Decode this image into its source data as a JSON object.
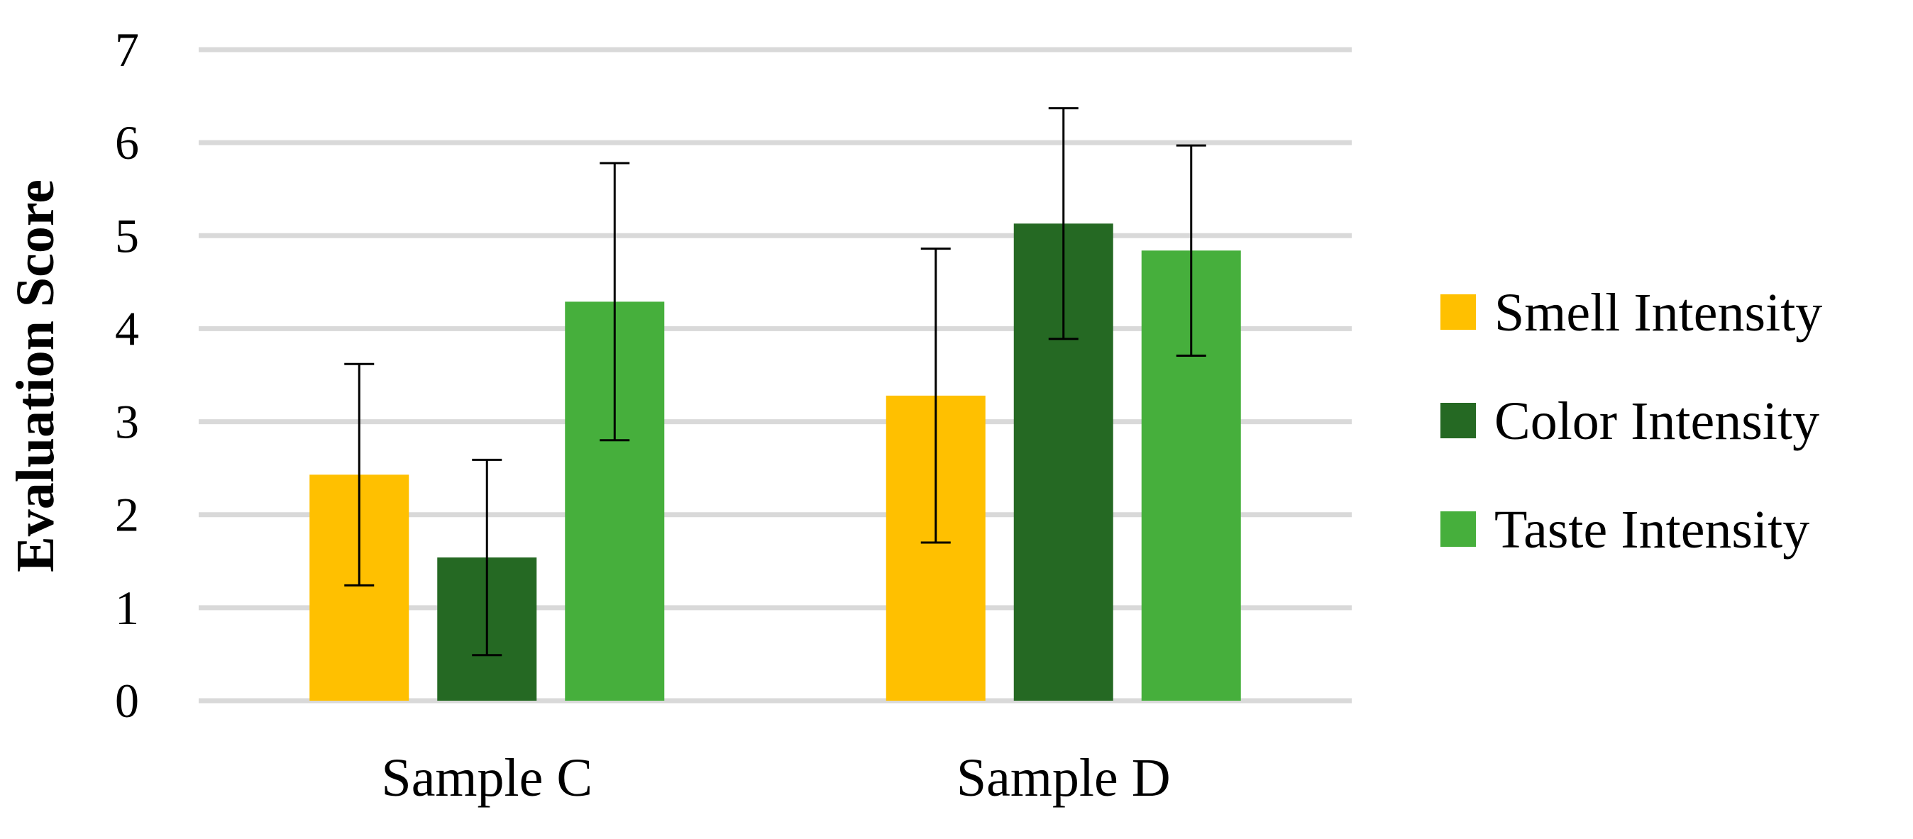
{
  "chart_data": {
    "type": "bar",
    "title": "",
    "xlabel": "",
    "ylabel": "Evaluation Score",
    "ylim": [
      0,
      7
    ],
    "yticks": [
      "0",
      "1",
      "2",
      "3",
      "4",
      "5",
      "6",
      "7"
    ],
    "grid": true,
    "legend_position": "right",
    "categories": [
      "Sample C",
      "Sample D"
    ],
    "series": [
      {
        "name": "Smell Intensity",
        "color": "#FFC000",
        "values": [
          2.43,
          3.28
        ],
        "errors": [
          1.19,
          1.58
        ]
      },
      {
        "name": "Color Intensity",
        "color": "#256923",
        "values": [
          1.54,
          5.13
        ],
        "errors": [
          1.05,
          1.24
        ]
      },
      {
        "name": "Taste Intensity",
        "color": "#46AF3C",
        "values": [
          4.29,
          4.84
        ],
        "errors": [
          1.49,
          1.13
        ]
      }
    ]
  }
}
